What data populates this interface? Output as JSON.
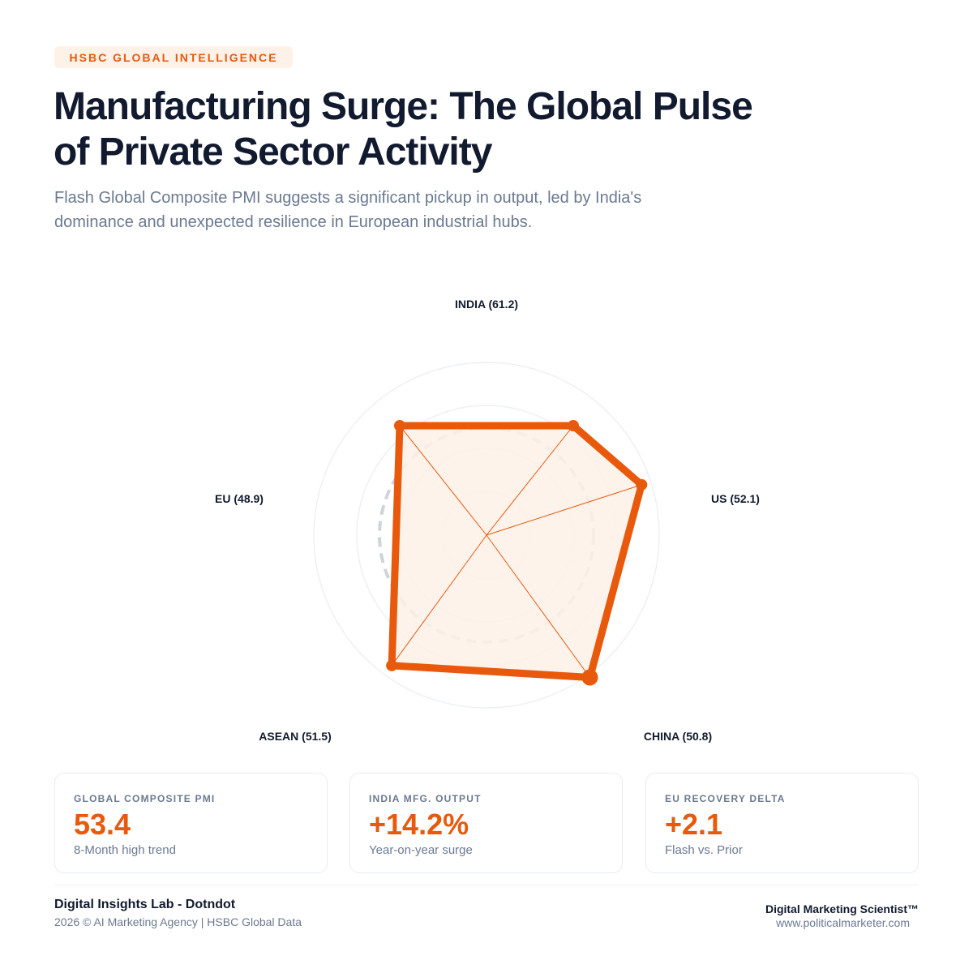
{
  "header": {
    "tag": "HSBC GLOBAL INTELLIGENCE",
    "title": "Manufacturing Surge: The Global Pulse of Private Sector Activity",
    "subtitle": "Flash Global Composite PMI suggests a significant pickup in output, led by India's dominance and unexpected resilience in European industrial hubs."
  },
  "chart_data": {
    "type": "radar",
    "categories": [
      "INDIA",
      "US",
      "CHINA",
      "ASEAN",
      "EU"
    ],
    "axis_labels": [
      "INDIA (61.2)",
      "US (52.1)",
      "CHINA (50.8)",
      "ASEAN (51.5)",
      "EU (48.9)"
    ],
    "values": [
      61.2,
      52.1,
      50.8,
      51.5,
      48.9
    ],
    "reference_value": 50,
    "grid": true,
    "colors": {
      "series": "#e8590c",
      "fill": "#fdf1e8",
      "reference": "#cfd3da",
      "grid": "#edf0f3"
    }
  },
  "cards": [
    {
      "label": "GLOBAL COMPOSITE PMI",
      "value": "53.4",
      "sub": "8-Month high trend"
    },
    {
      "label": "INDIA MFG. OUTPUT",
      "value": "+14.2%",
      "sub": "Year-on-year surge"
    },
    {
      "label": "EU RECOVERY DELTA",
      "value": "+2.1",
      "sub": "Flash vs. Prior"
    }
  ],
  "footer": {
    "left_title": "Digital Insights Lab - Dotndot",
    "left_sub": "2026 © AI Marketing Agency | HSBC Global Data",
    "right_title": "Digital Marketing Scientist™",
    "right_sub": "www.politicalmarketer.com"
  }
}
